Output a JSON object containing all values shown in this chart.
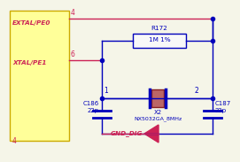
{
  "bg_color": "#f5f5e8",
  "ic_fill": "#ffff99",
  "ic_edge": "#ccaa00",
  "blue": "#0000bb",
  "pink": "#cc2255",
  "res_fill": "#f8f8f8",
  "res_edge": "#0000bb",
  "crystal_fill": "#bb6666",
  "crystal_edge": "#882222",
  "label_extal": "EXTAL/PE0",
  "label_xtal": "XTAL/PE1",
  "label_gnd": "GND_DIG",
  "label_r172": "R172",
  "label_r172_val": "1M 1%",
  "label_c186": "C186",
  "label_c186_val": "22p",
  "label_c187": "C187",
  "label_c187_val": "22p",
  "label_x2": "X2",
  "label_crystal": "NX5032GA_8MHz",
  "pin4_top": "4",
  "pin6": "6",
  "pin4_bot": "4",
  "pin1": "1",
  "pin2": "2"
}
